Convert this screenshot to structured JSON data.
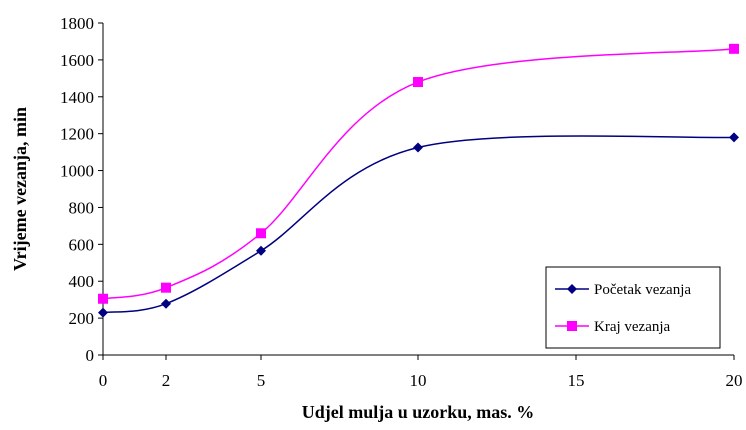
{
  "chart_data": {
    "type": "line",
    "xlabel": "Udjel mulja u uzorku, mas. %",
    "ylabel": "Vrijeme vezanja, min",
    "xlim": [
      0,
      20
    ],
    "ylim": [
      0,
      1800
    ],
    "x_ticks": [
      "0",
      "2",
      "5",
      "10",
      "15",
      "20"
    ],
    "y_ticks": [
      "0",
      "200",
      "400",
      "600",
      "800",
      "1000",
      "1200",
      "1400",
      "1600",
      "1800"
    ],
    "x_axis_note": "categorical spacing: 0 and 2 placed close together, then 5, 10, 15, 20 evenly",
    "grid": false,
    "smooth": true,
    "legend_position": "right-lower, inside plot",
    "x": [
      0,
      2,
      5,
      10,
      20
    ],
    "series": [
      {
        "name": "Početak vezanja",
        "values": [
          230,
          278,
          565,
          1125,
          1180
        ],
        "color": "#000080",
        "marker": "diamond"
      },
      {
        "name": "Kraj vezanja",
        "values": [
          305,
          365,
          660,
          1480,
          1660
        ],
        "color": "#ff00ff",
        "marker": "square"
      }
    ]
  }
}
